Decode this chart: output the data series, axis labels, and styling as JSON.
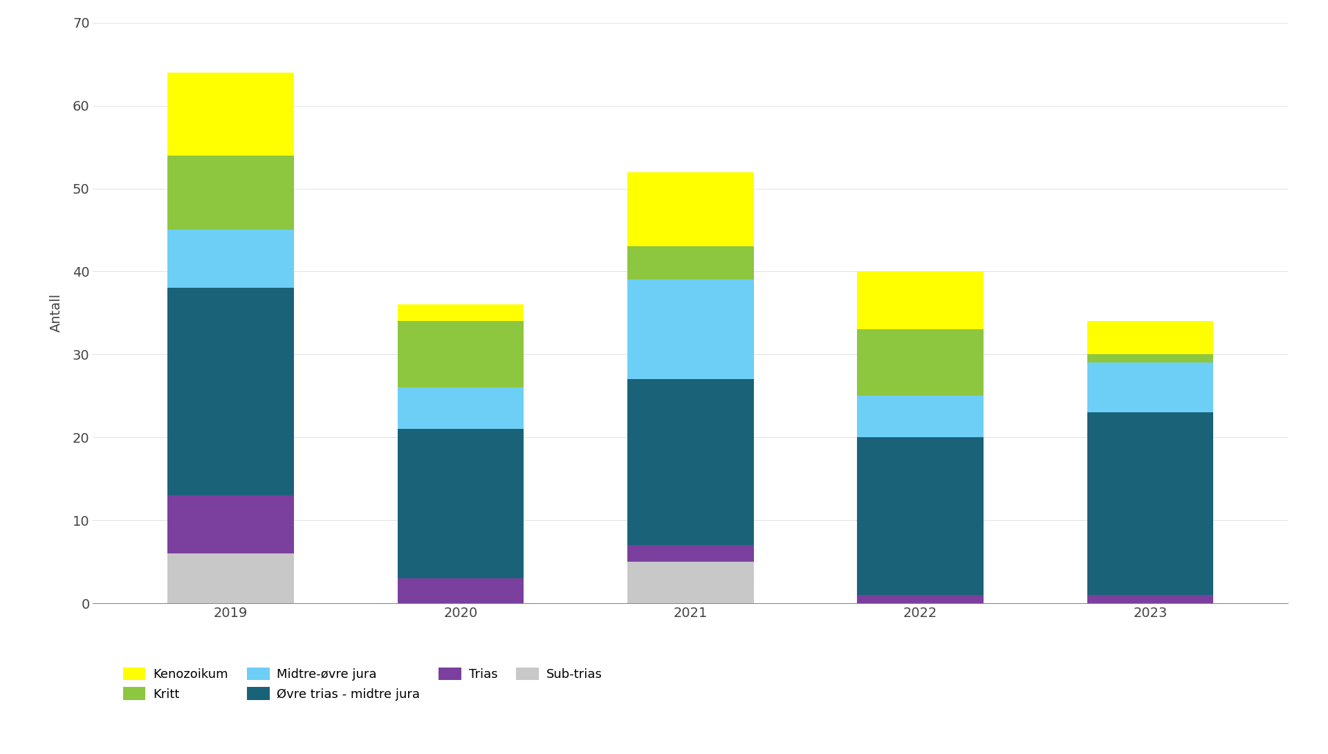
{
  "years": [
    "2019",
    "2020",
    "2021",
    "2022",
    "2023"
  ],
  "series": {
    "Sub-trias": [
      6,
      0,
      5,
      0,
      0
    ],
    "Trias": [
      7,
      3,
      2,
      1,
      1
    ],
    "Øvre trias - midtre jura": [
      25,
      18,
      20,
      19,
      22
    ],
    "Midtre-øvre jura": [
      7,
      5,
      12,
      5,
      6
    ],
    "Kritt": [
      9,
      8,
      4,
      8,
      1
    ],
    "Kenozoikum": [
      10,
      2,
      9,
      7,
      4
    ]
  },
  "colors": {
    "Sub-trias": "#c8c8c8",
    "Trias": "#7b3f9e",
    "Øvre trias - midtre jura": "#1a6278",
    "Midtre-øvre jura": "#6dcff6",
    "Kritt": "#8dc63f",
    "Kenozoikum": "#ffff00"
  },
  "ylabel": "Antall",
  "ylim": [
    0,
    70
  ],
  "yticks": [
    0,
    10,
    20,
    30,
    40,
    50,
    60,
    70
  ],
  "bar_width": 0.55,
  "background_color": "#ffffff",
  "series_order": [
    "Sub-trias",
    "Trias",
    "Øvre trias - midtre jura",
    "Midtre-øvre jura",
    "Kritt",
    "Kenozoikum"
  ],
  "legend_order": [
    "Kenozoikum",
    "Kritt",
    "Midtre-øvre jura",
    "Øvre trias - midtre jura",
    "Trias",
    "Sub-trias"
  ],
  "figsize": [
    19.2,
    10.9
  ],
  "dpi": 100,
  "ylabel_fontsize": 14,
  "tick_fontsize": 14,
  "legend_fontsize": 13
}
